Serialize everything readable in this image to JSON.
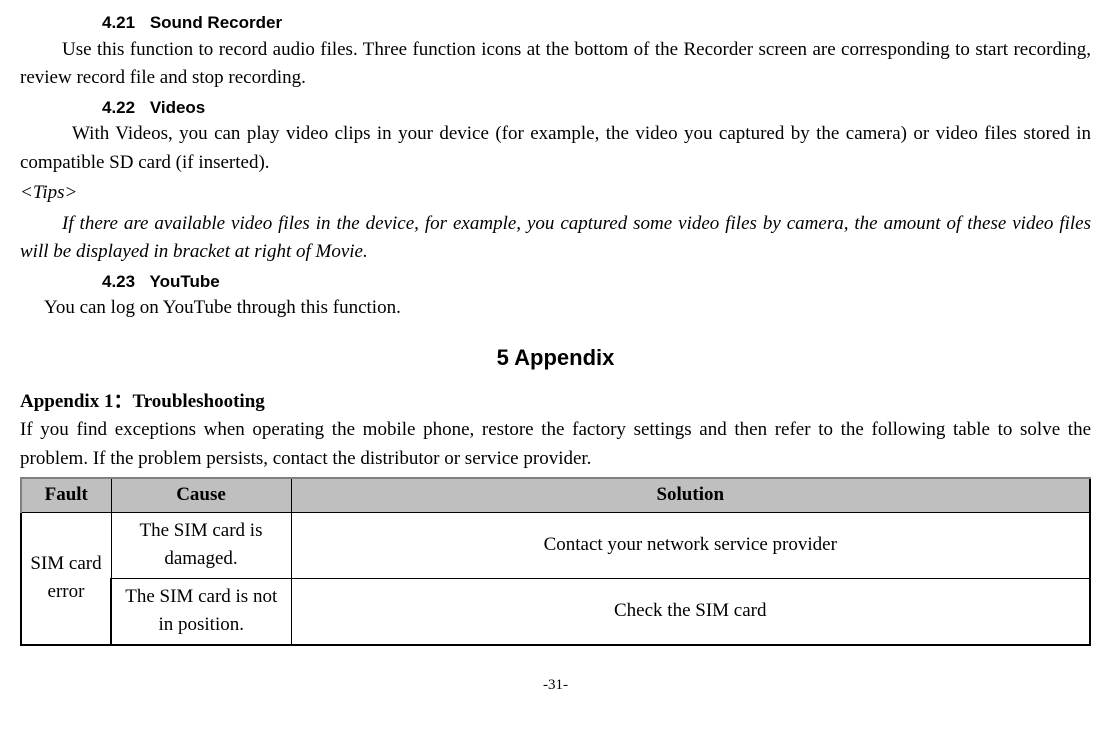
{
  "sections": {
    "s1": {
      "num": "4.21",
      "title": "Sound Recorder"
    },
    "s2": {
      "num": "4.22",
      "title": "Videos"
    },
    "s3": {
      "num": "4.23",
      "title": "YouTube"
    }
  },
  "paragraphs": {
    "p1": "Use this function to record audio files. Three function icons at the bottom of the Recorder screen are corresponding to start recording, review record file and stop recording.",
    "p2": "With Videos, you can play video clips in your device (for example, the video you captured by the camera) or video files stored in compatible SD card (if inserted).",
    "tips_label": "<Tips>",
    "p3": "If there are available video files in the device, for example, you captured some video files by camera, the amount of these video files will be displayed in bracket at right of Movie.",
    "p4": "You can log on YouTube through this function."
  },
  "chapter": "5 Appendix",
  "appendix": {
    "title": "Appendix 1：Troubleshooting",
    "intro": "If you find exceptions when operating the mobile phone, restore the factory settings and then refer to the following table to solve the problem. If the problem persists, contact the distributor or service provider."
  },
  "table": {
    "headers": {
      "fault": "Fault",
      "cause": "Cause",
      "solution": "Solution"
    },
    "fault1": "SIM card error",
    "cause1": "The SIM card is damaged.",
    "solution1": "Contact your network service provider",
    "cause2": "The SIM card is not in position.",
    "solution2": "Check the SIM card",
    "header_bg": "#bfbfbf"
  },
  "page_number": "-31-"
}
